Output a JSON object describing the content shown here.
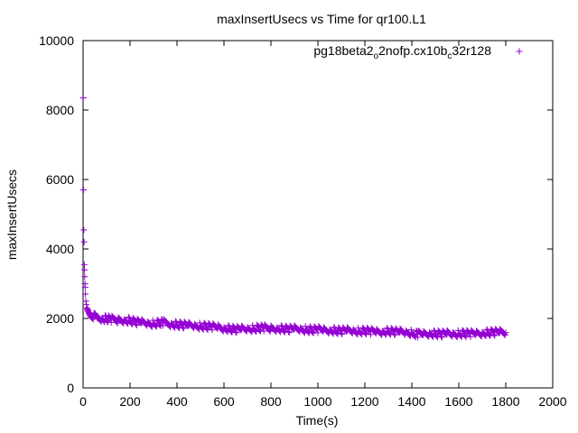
{
  "chart_data": {
    "type": "scatter",
    "title": "maxInsertUsecs vs Time for qr100.L1",
    "xlabel": "Time(s)",
    "ylabel": "maxInsertUsecs",
    "xlim": [
      0,
      2000
    ],
    "ylim": [
      0,
      10000
    ],
    "xticks": [
      "0",
      "200",
      "400",
      "600",
      "800",
      "1000",
      "1200",
      "1400",
      "1600",
      "1800",
      "2000"
    ],
    "yticks": [
      "0",
      "2000",
      "4000",
      "6000",
      "8000",
      "10000"
    ],
    "grid": false,
    "legend_position": "top-right",
    "series": [
      {
        "name": "pg18beta2_o2nofp.cx10b_c32r128",
        "legend_parts": [
          {
            "text": "pg18beta2",
            "sub": false
          },
          {
            "text": "o",
            "sub": true
          },
          {
            "text": "2nofp.cx10b",
            "sub": false
          },
          {
            "text": "c",
            "sub": true
          },
          {
            "text": "32r128",
            "sub": false
          }
        ],
        "color": "#9400d3",
        "marker": "plus",
        "x": [
          1,
          2,
          3,
          4,
          5,
          6,
          7,
          8,
          9,
          10,
          12,
          14,
          16,
          18,
          20,
          25,
          30,
          40,
          50,
          60,
          80,
          100,
          120,
          150,
          175,
          200,
          225,
          250,
          275,
          300,
          325,
          340,
          350,
          375,
          400,
          425,
          450,
          475,
          500,
          525,
          550,
          575,
          600,
          625,
          650,
          675,
          700,
          725,
          750,
          770,
          800,
          825,
          850,
          875,
          900,
          925,
          950,
          975,
          1000,
          1025,
          1050,
          1075,
          1100,
          1125,
          1150,
          1175,
          1200,
          1225,
          1250,
          1275,
          1300,
          1325,
          1350,
          1375,
          1400,
          1410,
          1425,
          1450,
          1475,
          1500,
          1525,
          1550,
          1575,
          1600,
          1625,
          1650,
          1675,
          1700,
          1725,
          1750,
          1775,
          1800
        ],
        "y": [
          8350,
          5700,
          4550,
          4200,
          3550,
          3400,
          3200,
          3000,
          2900,
          2700,
          2500,
          2400,
          2300,
          2250,
          2200,
          2150,
          2100,
          2080,
          2050,
          2020,
          2000,
          1990,
          1980,
          1960,
          1950,
          1940,
          1900,
          1880,
          1860,
          1850,
          1870,
          1890,
          1860,
          1840,
          1820,
          1810,
          1800,
          1790,
          1780,
          1770,
          1760,
          1750,
          1720,
          1700,
          1680,
          1690,
          1700,
          1710,
          1720,
          1730,
          1720,
          1710,
          1700,
          1690,
          1700,
          1690,
          1680,
          1670,
          1680,
          1670,
          1660,
          1650,
          1640,
          1650,
          1640,
          1630,
          1640,
          1630,
          1620,
          1620,
          1630,
          1620,
          1610,
          1600,
          1580,
          1560,
          1550,
          1560,
          1570,
          1560,
          1550,
          1560,
          1550,
          1560,
          1570,
          1560,
          1570,
          1580,
          1590,
          1600,
          1600,
          1590
        ]
      }
    ]
  }
}
